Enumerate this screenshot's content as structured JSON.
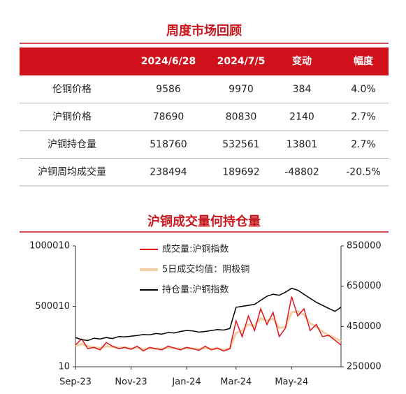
{
  "table": {
    "title": "周度市场回顾",
    "header": [
      "2024/6/28",
      "2024/7/5",
      "变动",
      "幅度"
    ],
    "rows": [
      [
        "伦铜价格",
        "9586",
        "9970",
        "384",
        "4.0%"
      ],
      [
        "沪铜价格",
        "78690",
        "80830",
        "2140",
        "2.7%"
      ],
      [
        "沪铜持仓量",
        "518760",
        "532561",
        "13801",
        "2.7%"
      ],
      [
        "沪铜周均成交量",
        "238494",
        "189692",
        "-48802",
        "-20.5%"
      ]
    ]
  },
  "chart_data": {
    "type": "line",
    "title": "沪铜成交量何持仓量",
    "categories": [
      "Sep-23",
      null,
      null,
      null,
      null,
      null,
      null,
      null,
      null,
      "Nov-23",
      null,
      null,
      null,
      null,
      null,
      null,
      null,
      null,
      "Jan-24",
      null,
      null,
      null,
      null,
      null,
      null,
      null,
      "Mar-24",
      null,
      null,
      null,
      null,
      null,
      null,
      null,
      null,
      "May-24",
      null,
      null,
      null,
      null,
      null,
      null,
      null,
      null
    ],
    "ylim": [
      10,
      1000010
    ],
    "yticks": [
      10,
      500010,
      1000010
    ],
    "y2lim": [
      250000,
      850000
    ],
    "y2ticks": [
      250000,
      450000,
      650000,
      850000
    ],
    "series": [
      {
        "name": "成交量:沪铜指数",
        "color": "#e0141e",
        "values": [
          180000,
          230000,
          150000,
          160000,
          140000,
          200000,
          170000,
          150000,
          160000,
          145000,
          170000,
          130000,
          160000,
          150000,
          140000,
          170000,
          155000,
          140000,
          160000,
          150000,
          135000,
          170000,
          140000,
          155000,
          130000,
          150000,
          380000,
          250000,
          420000,
          300000,
          480000,
          350000,
          450000,
          250000,
          320000,
          580000,
          420000,
          480000,
          300000,
          350000,
          250000,
          260000,
          220000,
          180000
        ]
      },
      {
        "name": "5日成交均值：阴极铜",
        "color": "#efcfa3",
        "values": [
          170000,
          190000,
          170000,
          160000,
          155000,
          170000,
          165000,
          158000,
          160000,
          150000,
          160000,
          145000,
          152000,
          150000,
          148000,
          158000,
          155000,
          148000,
          155000,
          150000,
          145000,
          155000,
          148000,
          150000,
          140000,
          150000,
          280000,
          300000,
          350000,
          340000,
          400000,
          380000,
          400000,
          320000,
          330000,
          450000,
          460000,
          430000,
          360000,
          330000,
          290000,
          260000,
          240000,
          210000
        ]
      },
      {
        "name": "持仓量:沪铜指数",
        "color": "#000000",
        "axis": "y2",
        "values": [
          395000,
          385000,
          380000,
          392000,
          388000,
          395000,
          390000,
          400000,
          398000,
          402000,
          405000,
          410000,
          408000,
          415000,
          412000,
          420000,
          418000,
          425000,
          430000,
          428000,
          422000,
          425000,
          430000,
          435000,
          432000,
          440000,
          545000,
          550000,
          555000,
          560000,
          580000,
          600000,
          610000,
          605000,
          620000,
          640000,
          630000,
          610000,
          590000,
          570000,
          555000,
          540000,
          525000,
          545000
        ]
      }
    ]
  }
}
